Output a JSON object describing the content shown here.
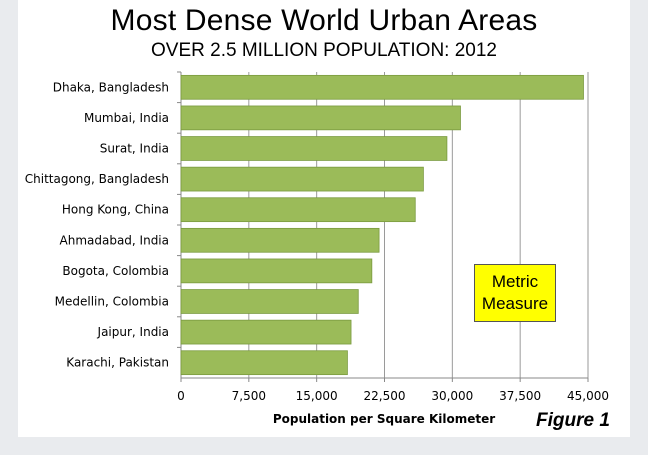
{
  "page": {
    "title": "Most Dense World Urban Areas",
    "subtitle": "OVER 2.5 MILLION POPULATION: 2012",
    "note": "Metric\nMeasure",
    "figure_label": "Figure 1"
  },
  "chart_data": {
    "type": "bar",
    "orientation": "horizontal",
    "categories": [
      "Dhaka, Bangladesh",
      "Mumbai, India",
      "Surat, India",
      "Chittagong, Bangladesh",
      "Hong Kong, China",
      "Ahmadabad, India",
      "Bogota, Colombia",
      "Medellin, Colombia",
      "Jaipur, India",
      "Karachi, Pakistan"
    ],
    "values": [
      44500,
      30900,
      29400,
      26800,
      25900,
      21900,
      21100,
      19600,
      18800,
      18400
    ],
    "xlabel": "Population per Square Kilometer",
    "xlim": [
      0,
      45000
    ],
    "xticks": [
      "0",
      "7,500",
      "15,000",
      "22,500",
      "30,000",
      "37,500",
      "45,000"
    ],
    "grid": true,
    "bar_color": "#9bbb59",
    "bar_edge_color": "#7a9a3f"
  }
}
